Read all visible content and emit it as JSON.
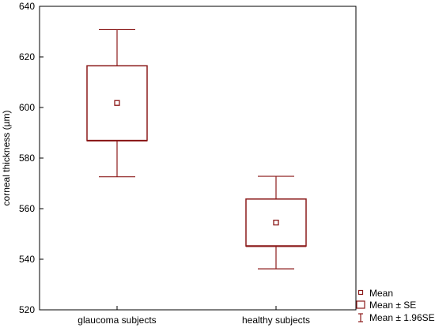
{
  "chart_data": {
    "type": "box",
    "title": "",
    "xlabel": "",
    "ylabel": "corneal thickness (µm)",
    "ylim": [
      520,
      640
    ],
    "yticks": [
      520,
      540,
      560,
      580,
      600,
      620,
      640
    ],
    "grid": false,
    "legend_position": "bottom-right",
    "categories": [
      "glaucoma subjects",
      "healthy subjects"
    ],
    "groups": [
      {
        "category": "glaucoma subjects",
        "mean": 601.8,
        "se_low": 586.9,
        "se_high": 616.5,
        "ci_low": 572.6,
        "ci_high": 630.8
      },
      {
        "category": "healthy subjects",
        "mean": 554.5,
        "se_low": 545.2,
        "se_high": 563.8,
        "ci_low": 536.2,
        "ci_high": 572.8
      }
    ],
    "legend": [
      "Mean",
      "Mean ± SE",
      "Mean ± 1.96SE"
    ],
    "color": "#8b1a1a"
  }
}
